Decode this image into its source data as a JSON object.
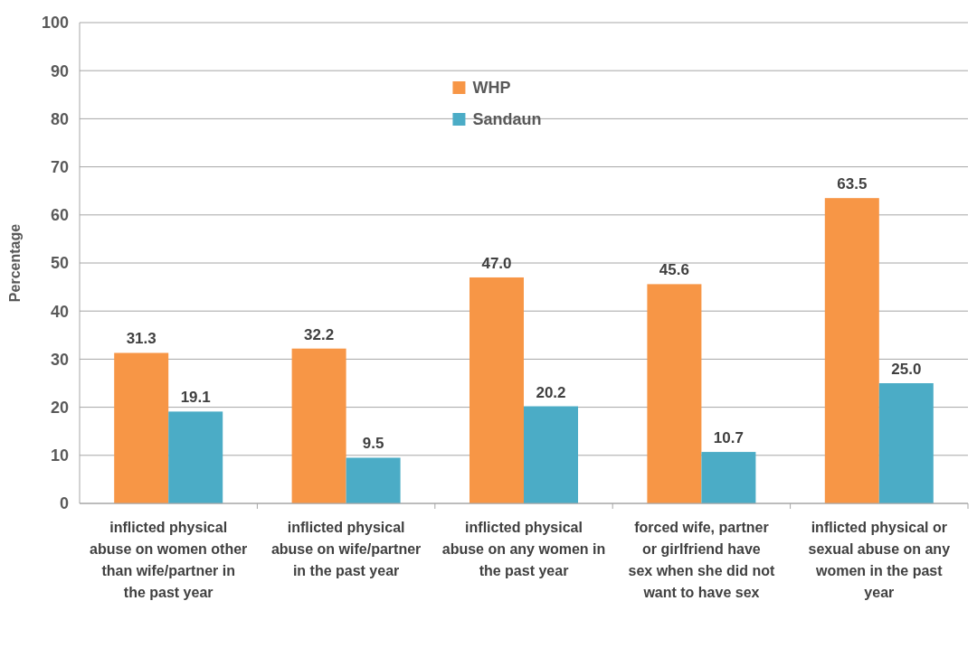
{
  "chart_data": {
    "type": "bar",
    "ylabel": "Percentage",
    "categories": [
      "inflicted physical abuse on women other than wife/partner in the past year",
      "inflicted physical abuse on wife/partner in the past year",
      "inflicted physical abuse on any women in the past year",
      "forced wife, partner or girlfriend have sex when she did not want to have sex",
      "inflicted physical or sexual abuse on any women in the past year"
    ],
    "series": [
      {
        "name": "WHP",
        "color": "#f79646",
        "values": [
          31.3,
          32.2,
          47.0,
          45.6,
          63.5
        ],
        "value_labels": [
          "31.3",
          "32.2",
          "47.0",
          "45.6",
          "63.5"
        ]
      },
      {
        "name": "Sandaun",
        "color": "#4bacc6",
        "values": [
          19.1,
          9.5,
          20.2,
          10.7,
          25.0
        ],
        "value_labels": [
          "19.1",
          "9.5",
          "20.2",
          "10.7",
          "25.0"
        ]
      }
    ],
    "ylim": [
      0,
      100
    ],
    "yticks": [
      0,
      10,
      20,
      30,
      40,
      50,
      60,
      70,
      80,
      90,
      100
    ],
    "grid": "y",
    "legend": "top"
  }
}
